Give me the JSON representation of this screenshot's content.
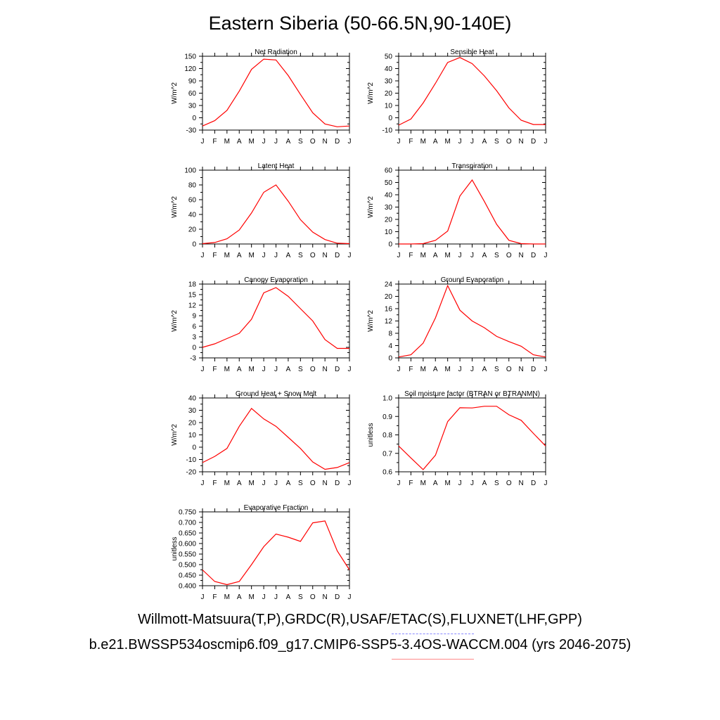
{
  "title": "Eastern Siberia (50-66.5N,90-140E)",
  "colors": {
    "series": "#ff0000",
    "axis": "#000000",
    "obs_legend": "#8888ff",
    "case_legend": "#ff8888"
  },
  "captions": {
    "obs": "Willmott-Matsuura(T,P),GRDC(R),USAF/ETAC(S),FLUXNET(LHF,GPP)",
    "case": "b.e21.BWSSP534oscmip6.f09_g17.CMIP6-SSP5-3.4OS-WACCM.004 (yrs 2046-2075)"
  },
  "chart_data": [
    {
      "type": "line",
      "title": "Net Radiation",
      "ylabel": "W/m^2",
      "categories": [
        "J",
        "F",
        "M",
        "A",
        "M",
        "J",
        "J",
        "A",
        "S",
        "O",
        "N",
        "D",
        "J"
      ],
      "ylim": [
        -30,
        150
      ],
      "yticks": [
        "-30",
        "0",
        "30",
        "60",
        "90",
        "120",
        "150"
      ],
      "values": [
        -20,
        -7,
        18,
        65,
        118,
        143,
        141,
        103,
        57,
        12,
        -15,
        -22,
        -20
      ]
    },
    {
      "type": "line",
      "title": "Sensible Heat",
      "ylabel": "W/m^2",
      "categories": [
        "J",
        "F",
        "M",
        "A",
        "M",
        "J",
        "J",
        "A",
        "S",
        "O",
        "N",
        "D",
        "J"
      ],
      "ylim": [
        -10,
        50
      ],
      "yticks": [
        "-10",
        "0",
        "10",
        "20",
        "30",
        "40",
        "50"
      ],
      "values": [
        -6,
        -1,
        12,
        28,
        45,
        49,
        44,
        34,
        22,
        8,
        -2,
        -5.5,
        -5.5
      ]
    },
    {
      "type": "line",
      "title": "Latent Heat",
      "ylabel": "W/m^2",
      "categories": [
        "J",
        "F",
        "M",
        "A",
        "M",
        "J",
        "J",
        "A",
        "S",
        "O",
        "N",
        "D",
        "J"
      ],
      "ylim": [
        0,
        100
      ],
      "yticks": [
        "0",
        "20",
        "40",
        "60",
        "80",
        "100"
      ],
      "values": [
        0.5,
        2,
        7,
        19,
        42,
        70,
        80,
        58,
        33,
        16,
        6,
        1,
        0.5
      ]
    },
    {
      "type": "line",
      "title": "Transpiration",
      "ylabel": "W/m^2",
      "categories": [
        "J",
        "F",
        "M",
        "A",
        "M",
        "J",
        "J",
        "A",
        "S",
        "O",
        "N",
        "D",
        "J"
      ],
      "ylim": [
        0,
        60
      ],
      "yticks": [
        "0",
        "10",
        "20",
        "30",
        "40",
        "50",
        "60"
      ],
      "values": [
        0,
        0,
        0.3,
        3,
        10.5,
        39,
        52,
        34.5,
        16,
        3,
        0.3,
        0,
        0
      ]
    },
    {
      "type": "line",
      "title": "Canopy Evaporation",
      "ylabel": "W/m^2",
      "categories": [
        "J",
        "F",
        "M",
        "A",
        "M",
        "J",
        "J",
        "A",
        "S",
        "O",
        "N",
        "D",
        "J"
      ],
      "ylim": [
        -3,
        18
      ],
      "yticks": [
        "-3",
        "0",
        "3",
        "6",
        "9",
        "12",
        "15",
        "18"
      ],
      "values": [
        0,
        1,
        2.5,
        4,
        8,
        15.5,
        17,
        14.5,
        11,
        7.5,
        2.2,
        -0.3,
        -0.3
      ]
    },
    {
      "type": "line",
      "title": "Ground Evaporation",
      "ylabel": "W/m^2",
      "categories": [
        "J",
        "F",
        "M",
        "A",
        "M",
        "J",
        "J",
        "A",
        "S",
        "O",
        "N",
        "D",
        "J"
      ],
      "ylim": [
        0,
        24
      ],
      "yticks": [
        "0",
        "4",
        "8",
        "12",
        "16",
        "20",
        "24"
      ],
      "values": [
        0.3,
        1,
        4.8,
        13,
        23.5,
        15.5,
        12,
        9.8,
        7,
        5.3,
        3.8,
        1,
        0.3
      ]
    },
    {
      "type": "line",
      "title": "Ground Heat + Snow Melt",
      "ylabel": "W/m^2",
      "categories": [
        "J",
        "F",
        "M",
        "A",
        "M",
        "J",
        "J",
        "A",
        "S",
        "O",
        "N",
        "D",
        "J"
      ],
      "ylim": [
        -20,
        40
      ],
      "yticks": [
        "-20",
        "-10",
        "0",
        "10",
        "20",
        "30",
        "40"
      ],
      "values": [
        -12.5,
        -7.5,
        -1,
        17,
        31.5,
        23,
        17,
        8,
        -1,
        -12,
        -18,
        -16.5,
        -12.5
      ]
    },
    {
      "type": "line",
      "title": "Soil moisture factor (BTRAN or BTRANMN)",
      "ylabel": "unitless",
      "categories": [
        "J",
        "F",
        "M",
        "A",
        "M",
        "J",
        "J",
        "A",
        "S",
        "O",
        "N",
        "D",
        "J"
      ],
      "ylim": [
        0.6,
        1.0
      ],
      "yticks": [
        "0.6",
        "0.7",
        "0.8",
        "0.9",
        "1.0"
      ],
      "values": [
        0.74,
        0.675,
        0.612,
        0.69,
        0.872,
        0.947,
        0.946,
        0.955,
        0.955,
        0.909,
        0.879,
        0.808,
        0.74
      ]
    },
    {
      "type": "line",
      "title": "Evaporative Fraction",
      "ylabel": "unitless",
      "categories": [
        "J",
        "F",
        "M",
        "A",
        "M",
        "J",
        "J",
        "A",
        "S",
        "O",
        "N",
        "D",
        "J"
      ],
      "ylim": [
        0.4,
        0.75
      ],
      "yticks": [
        "0.400",
        "0.450",
        "0.500",
        "0.550",
        "0.600",
        "0.650",
        "0.700",
        "0.750"
      ],
      "values": [
        0.475,
        0.42,
        0.405,
        0.42,
        0.5,
        0.585,
        0.645,
        0.63,
        0.61,
        0.698,
        0.707,
        0.565,
        0.475
      ]
    }
  ]
}
